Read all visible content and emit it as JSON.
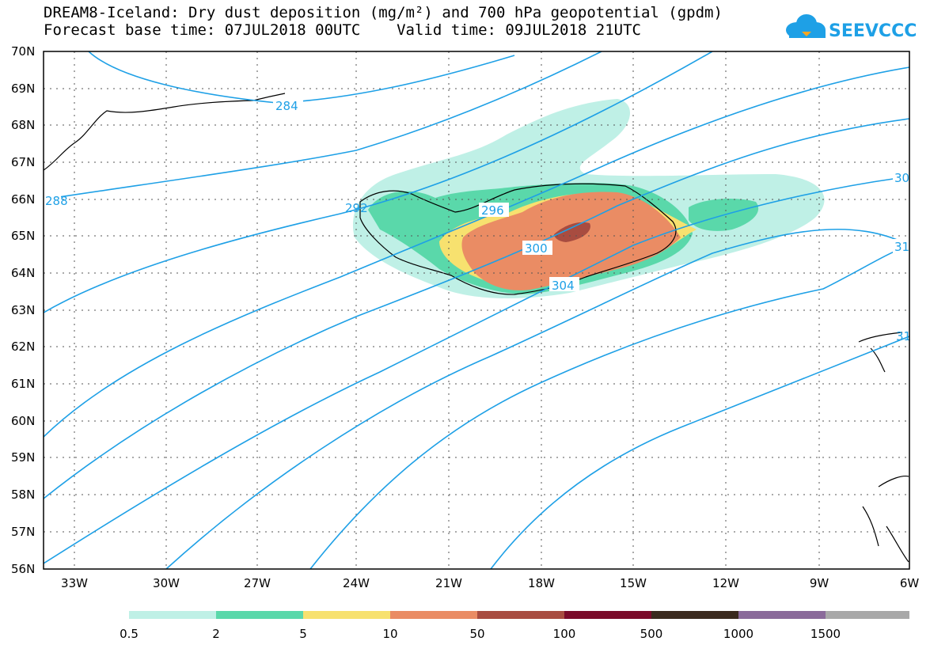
{
  "title": {
    "line1": "DREAM8-Iceland: Dry dust deposition (mg/m²) and 700 hPa geopotential (gpdm)",
    "line2": "Forecast base time: 07JUL2018 00UTC    Valid time: 09JUL2018 21UTC"
  },
  "logo": {
    "text": "SEEVCCC"
  },
  "colors": {
    "contour": "#1ea0e6",
    "frame": "#000000",
    "grid": "#555555"
  },
  "map": {
    "lat_min": 56,
    "lat_max": 70,
    "lon_min": -34.5,
    "lon_max": -6,
    "lat_labels": [
      "70N",
      "69N",
      "68N",
      "67N",
      "66N",
      "65N",
      "64N",
      "63N",
      "62N",
      "61N",
      "60N",
      "59N",
      "58N",
      "57N",
      "56N"
    ],
    "lon_labels": [
      "33W",
      "30W",
      "27W",
      "24W",
      "21W",
      "18W",
      "15W",
      "12W",
      "9W",
      "6W"
    ],
    "lon_values": [
      -33,
      -30,
      -27,
      -24,
      -21,
      -18,
      -15,
      -12,
      -9,
      -6
    ]
  },
  "contour_labels": [
    {
      "text": "284"
    },
    {
      "text": "288"
    },
    {
      "text": "292"
    },
    {
      "text": "296"
    },
    {
      "text": "300"
    },
    {
      "text": "304"
    },
    {
      "text": "30"
    },
    {
      "text": "31"
    },
    {
      "text": "31"
    }
  ],
  "legend": {
    "labels": [
      "0.5",
      "2",
      "5",
      "10",
      "50",
      "100",
      "500",
      "1000",
      "1500"
    ],
    "colors": [
      "#bff0e6",
      "#5ad8aa",
      "#f7e16f",
      "#ea8c64",
      "#a84c40",
      "#7a0a2a",
      "#3a2a1e",
      "#8a6a9a",
      "#a8a8a8"
    ]
  }
}
